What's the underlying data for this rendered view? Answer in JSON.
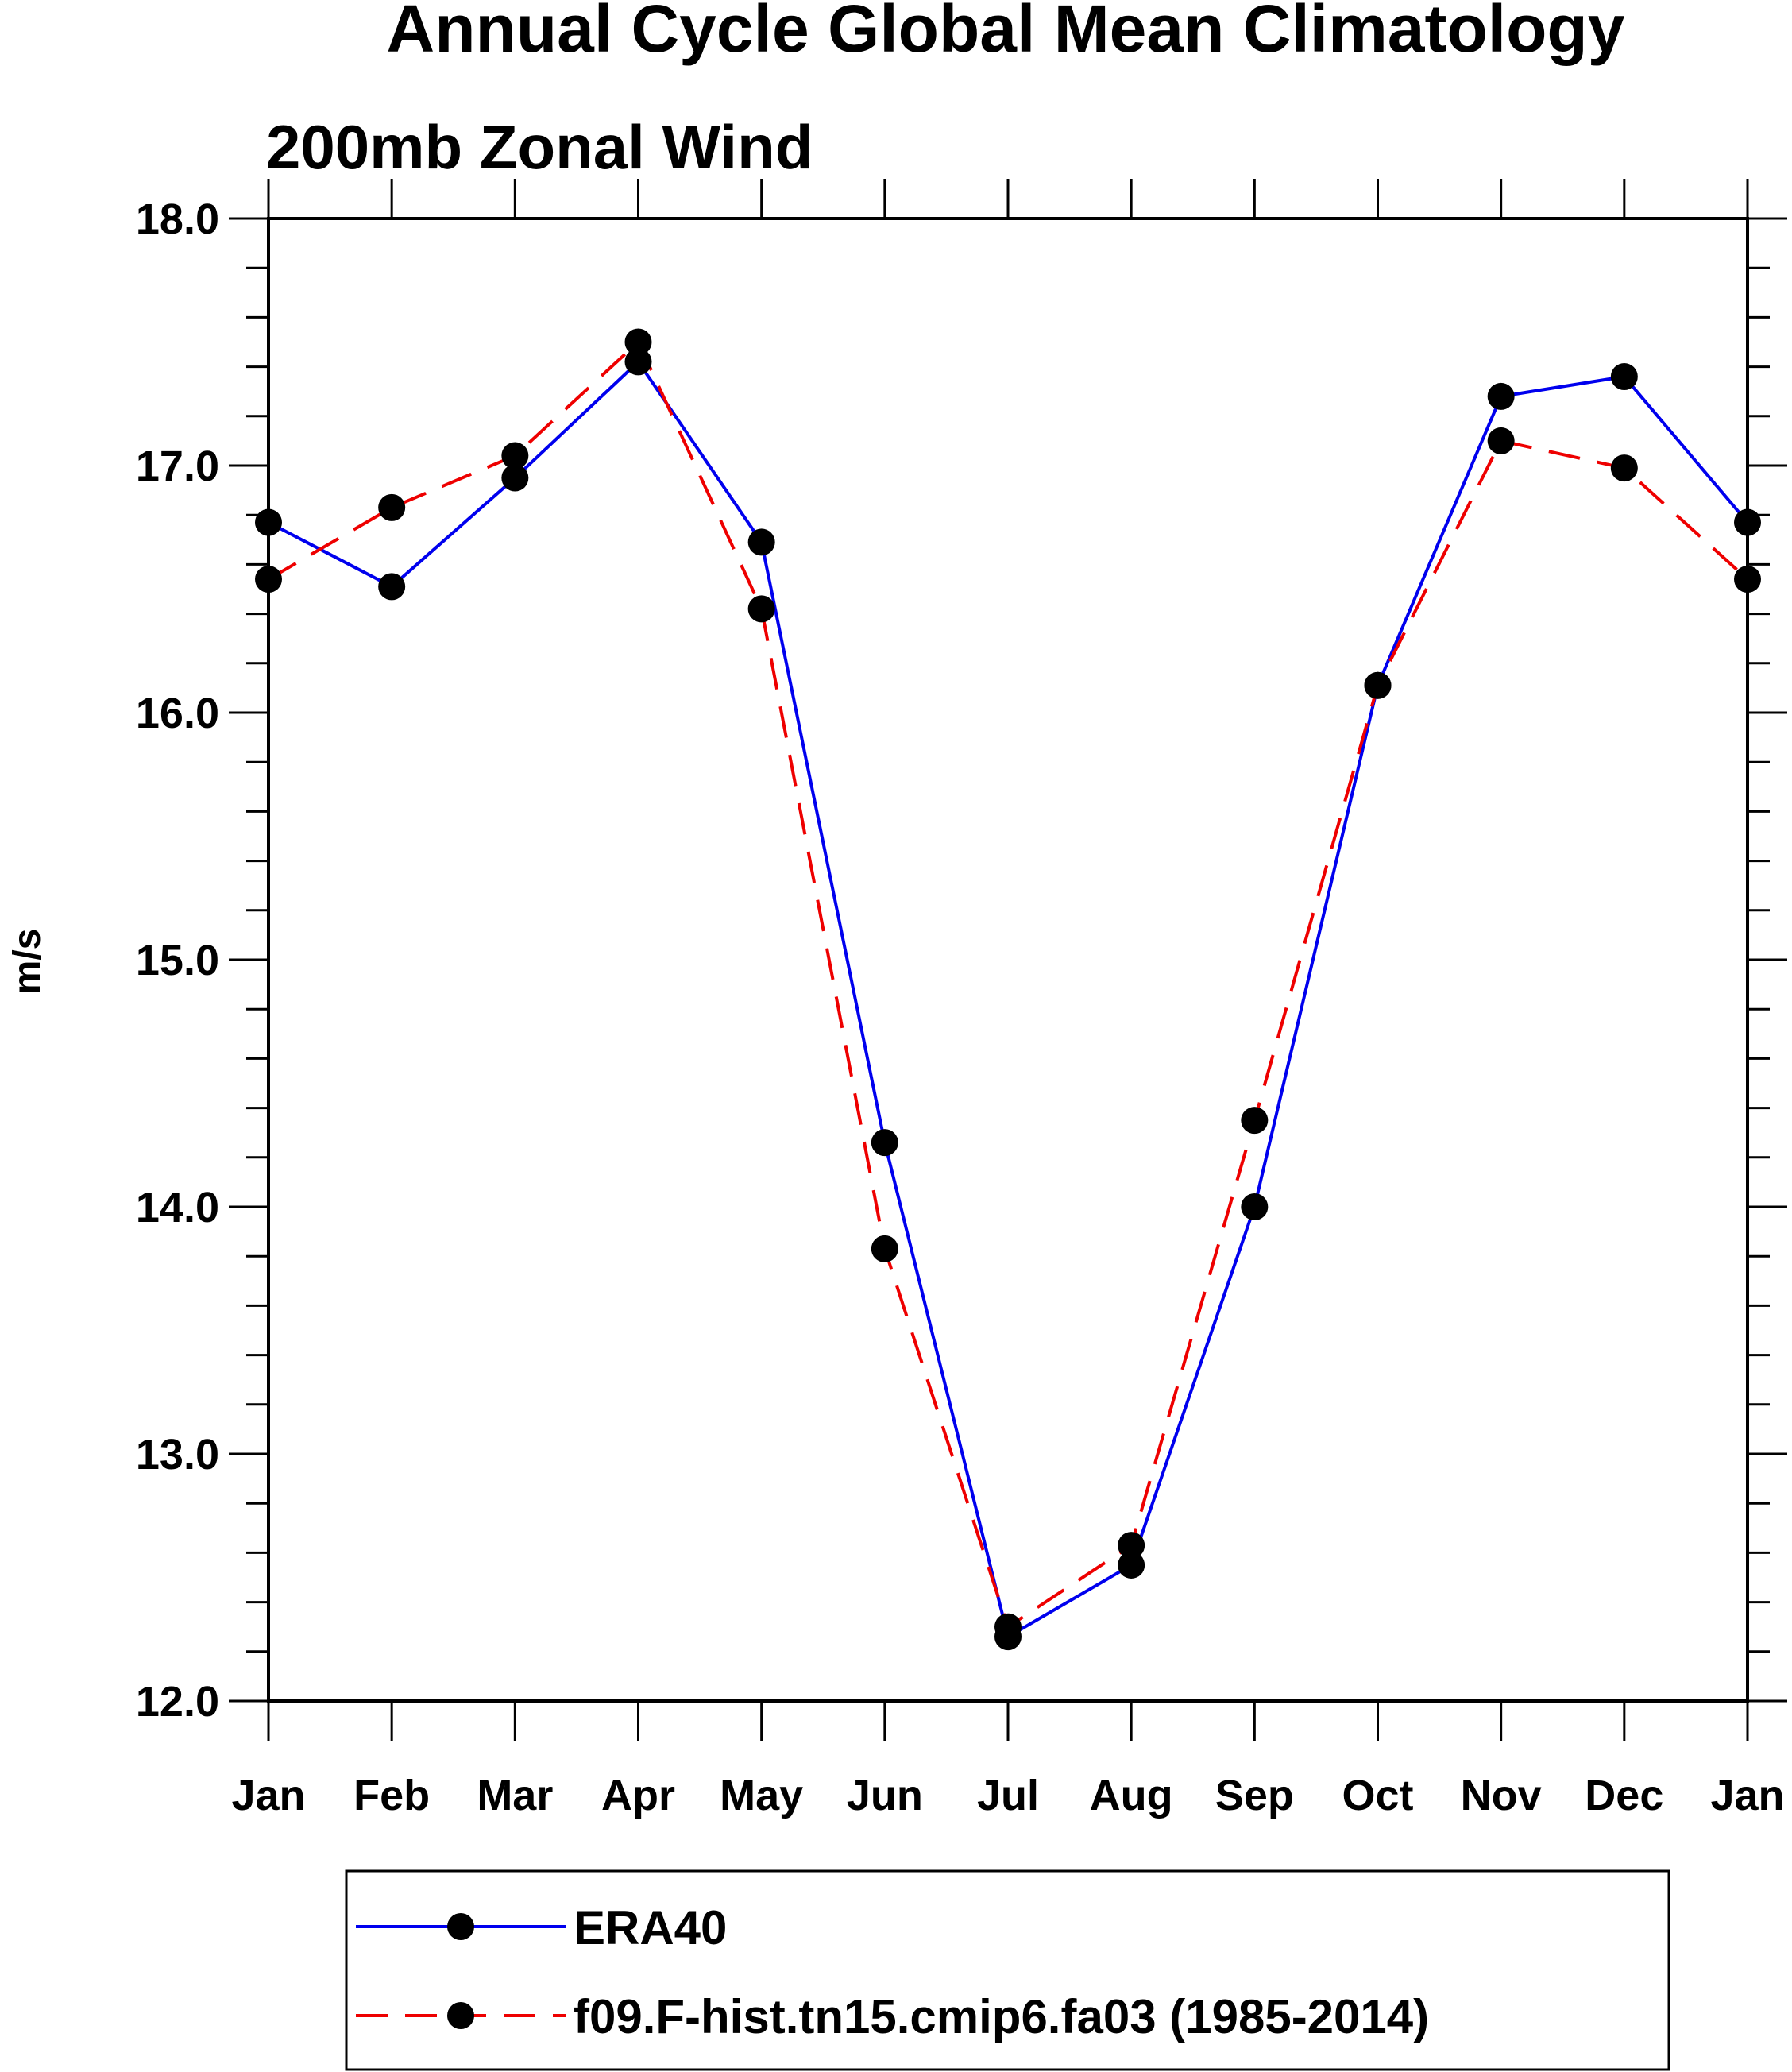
{
  "chart_data": {
    "type": "line",
    "title": "Annual Cycle Global Mean Climatology",
    "subtitle": "200mb Zonal Wind",
    "xlabel": "",
    "ylabel": "m/s",
    "categories": [
      "Jan",
      "Feb",
      "Mar",
      "Apr",
      "May",
      "Jun",
      "Jul",
      "Aug",
      "Sep",
      "Oct",
      "Nov",
      "Dec",
      "Jan"
    ],
    "ylim": [
      12.0,
      18.0
    ],
    "yticks": [
      "12.0",
      "13.0",
      "14.0",
      "15.0",
      "16.0",
      "17.0",
      "18.0"
    ],
    "grid": false,
    "legend_position": "bottom",
    "series": [
      {
        "name": "ERA40",
        "color": "#0000ee",
        "style": "solid",
        "values": [
          16.77,
          16.51,
          16.95,
          17.42,
          16.69,
          14.26,
          12.26,
          12.55,
          14.0,
          16.11,
          17.28,
          17.36,
          16.77
        ]
      },
      {
        "name": "f09.F-hist.tn15.cmip6.fa03 (1985-2014)",
        "color": "#ee0000",
        "style": "dashed",
        "values": [
          16.54,
          16.83,
          17.04,
          17.5,
          16.42,
          13.83,
          12.3,
          12.63,
          14.35,
          16.11,
          17.1,
          16.99,
          16.54
        ]
      }
    ]
  }
}
